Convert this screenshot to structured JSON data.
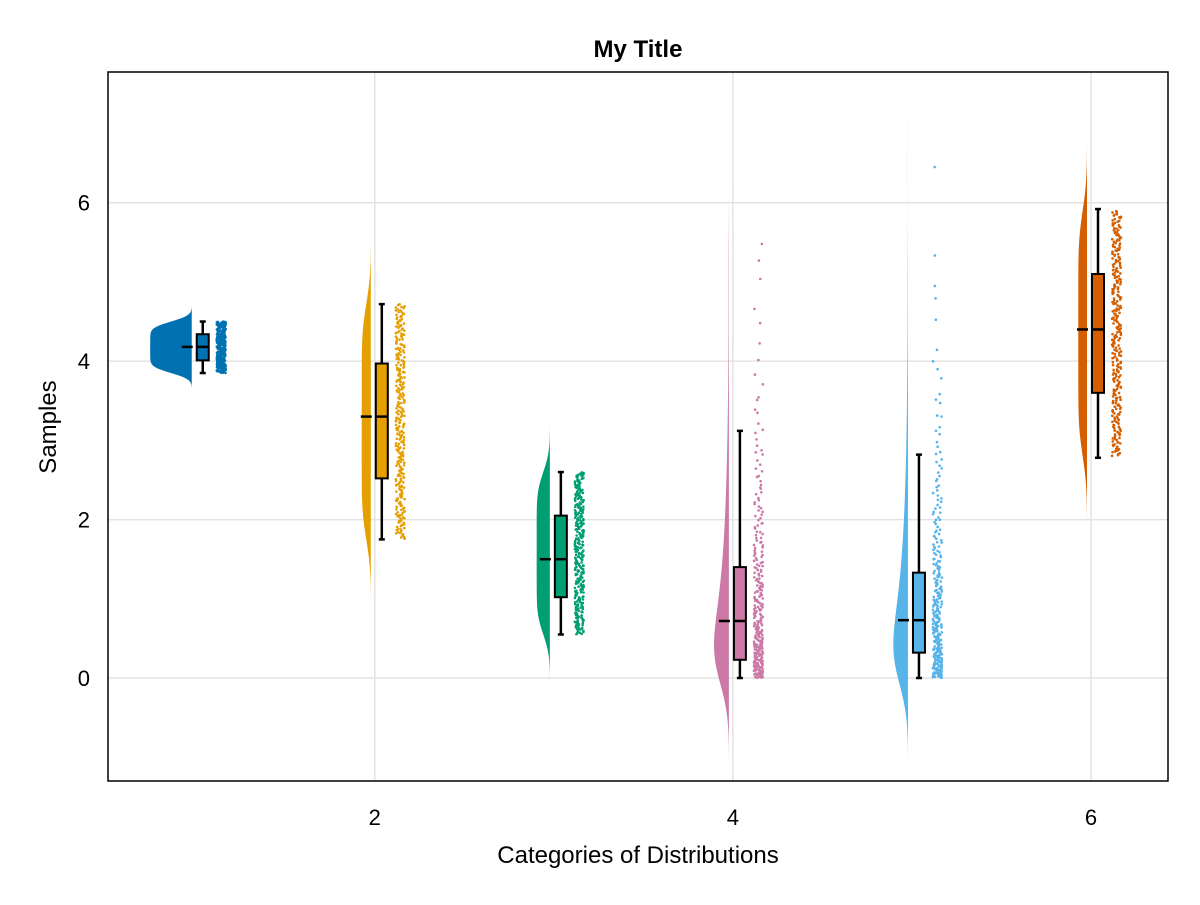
{
  "chart_data": {
    "type": "raincloud",
    "title": "My Title",
    "xlabel": "Categories of Distributions",
    "ylabel": "Samples",
    "xlim": [
      0.51,
      6.43
    ],
    "ylim": [
      -1.3,
      7.65
    ],
    "xticks": [
      2,
      4,
      6
    ],
    "yticks": [
      0,
      2,
      4,
      6
    ],
    "grid": true,
    "points_per_category": 300,
    "categories": [
      {
        "x": 1,
        "color": "#0072B2",
        "distribution": "uniform",
        "params": [
          3.85,
          4.5
        ],
        "whisker_low": 3.85,
        "q1": 4.01,
        "median": 4.18,
        "q3": 4.34,
        "whisker_high": 4.5
      },
      {
        "x": 2,
        "color": "#E69F00",
        "distribution": "uniform",
        "params": [
          1.75,
          4.72
        ],
        "whisker_low": 1.75,
        "q1": 2.52,
        "median": 3.3,
        "q3": 3.97,
        "whisker_high": 4.72
      },
      {
        "x": 3,
        "color": "#009E73",
        "distribution": "uniform",
        "params": [
          0.55,
          2.6
        ],
        "whisker_low": 0.55,
        "q1": 1.02,
        "median": 1.5,
        "q3": 2.05,
        "whisker_high": 2.6
      },
      {
        "x": 4,
        "color": "#CC79A7",
        "distribution": "exponential",
        "params": [
          0.96,
          5.48
        ],
        "whisker_low": 0.0,
        "q1": 0.23,
        "median": 0.72,
        "q3": 1.4,
        "whisker_high": 3.12
      },
      {
        "x": 5,
        "color": "#56B4E9",
        "distribution": "exponential",
        "params": [
          0.95,
          6.45
        ],
        "whisker_low": 0.0,
        "q1": 0.32,
        "median": 0.73,
        "q3": 1.33,
        "whisker_high": 2.82
      },
      {
        "x": 6,
        "color": "#D55E00",
        "distribution": "uniform",
        "params": [
          2.8,
          5.9
        ],
        "whisker_low": 2.78,
        "q1": 3.6,
        "median": 4.4,
        "q3": 5.1,
        "whisker_high": 5.92
      }
    ]
  }
}
